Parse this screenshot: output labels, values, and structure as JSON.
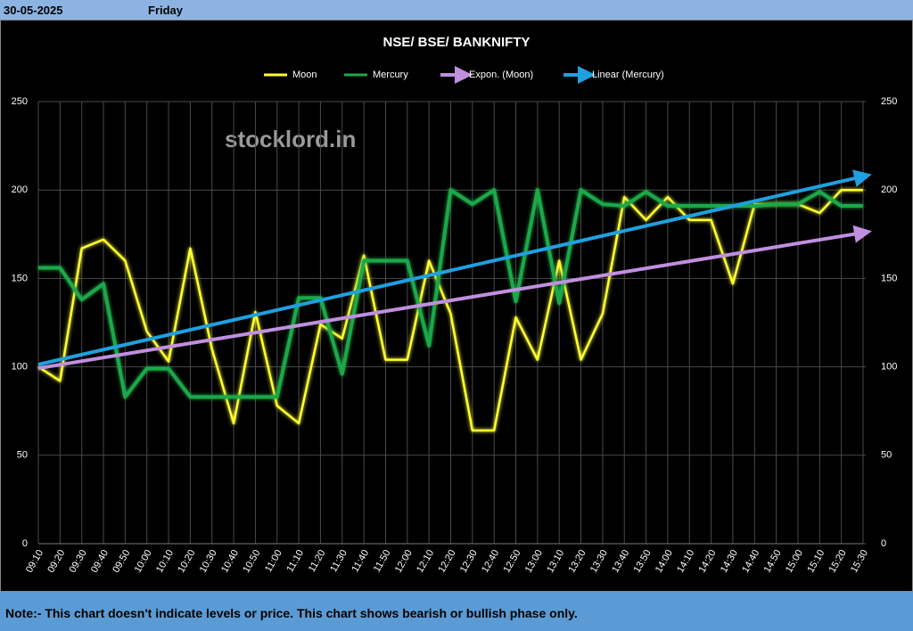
{
  "header": {
    "date": "30-05-2025",
    "day": "Friday"
  },
  "footer": {
    "note": "Note:- This chart doesn't indicate levels or price. This chart shows bearish or bullish phase only."
  },
  "chart_data": {
    "type": "line",
    "title": "NSE/ BSE/ BANKNIFTY",
    "annotation": "stocklord.in",
    "categories": [
      "09:10",
      "09:20",
      "09:30",
      "09:40",
      "09:50",
      "10:00",
      "10:10",
      "10:20",
      "10:30",
      "10:40",
      "10:50",
      "11:00",
      "11:10",
      "11:20",
      "11:30",
      "11:40",
      "11:50",
      "12:00",
      "12:10",
      "12:20",
      "12:30",
      "12:40",
      "12:50",
      "13:00",
      "13:10",
      "13:20",
      "13:30",
      "13:40",
      "13:50",
      "14:00",
      "14:10",
      "14:20",
      "14:30",
      "14:40",
      "14:50",
      "15:00",
      "15:10",
      "15:20",
      "15:30"
    ],
    "series": [
      {
        "name": "Moon",
        "color": "#ffff33",
        "values": [
          100,
          92,
          167,
          172,
          160,
          120,
          103,
          167,
          110,
          68,
          131,
          78,
          68,
          124,
          116,
          163,
          104,
          104,
          160,
          130,
          64,
          64,
          128,
          104,
          160,
          104,
          130,
          196,
          183,
          196,
          183,
          183,
          147,
          192,
          192,
          192,
          187,
          200,
          200
        ]
      },
      {
        "name": "Mercury",
        "color": "#1fa84a",
        "values": [
          156,
          156,
          138,
          147,
          83,
          99,
          99,
          83,
          83,
          83,
          83,
          83,
          139,
          139,
          96,
          160,
          160,
          160,
          112,
          200,
          192,
          200,
          137,
          200,
          136,
          200,
          192,
          191,
          199,
          191,
          191,
          191,
          191,
          191,
          192,
          192,
          199,
          191,
          191
        ]
      }
    ],
    "trendlines": [
      {
        "name": "Expon. (Moon)",
        "color": "#c08fe0",
        "fit": "exponential",
        "series": 0
      },
      {
        "name": "Linear (Mercury)",
        "color": "#1fa0e0",
        "fit": "linear",
        "series": 1
      }
    ],
    "ylim": [
      0,
      250
    ],
    "yticks": [
      0,
      50,
      100,
      150,
      200,
      250
    ],
    "y2lim": [
      0,
      250
    ],
    "y2ticks": [
      0,
      50,
      100,
      150,
      200,
      250
    ],
    "grid": true
  }
}
